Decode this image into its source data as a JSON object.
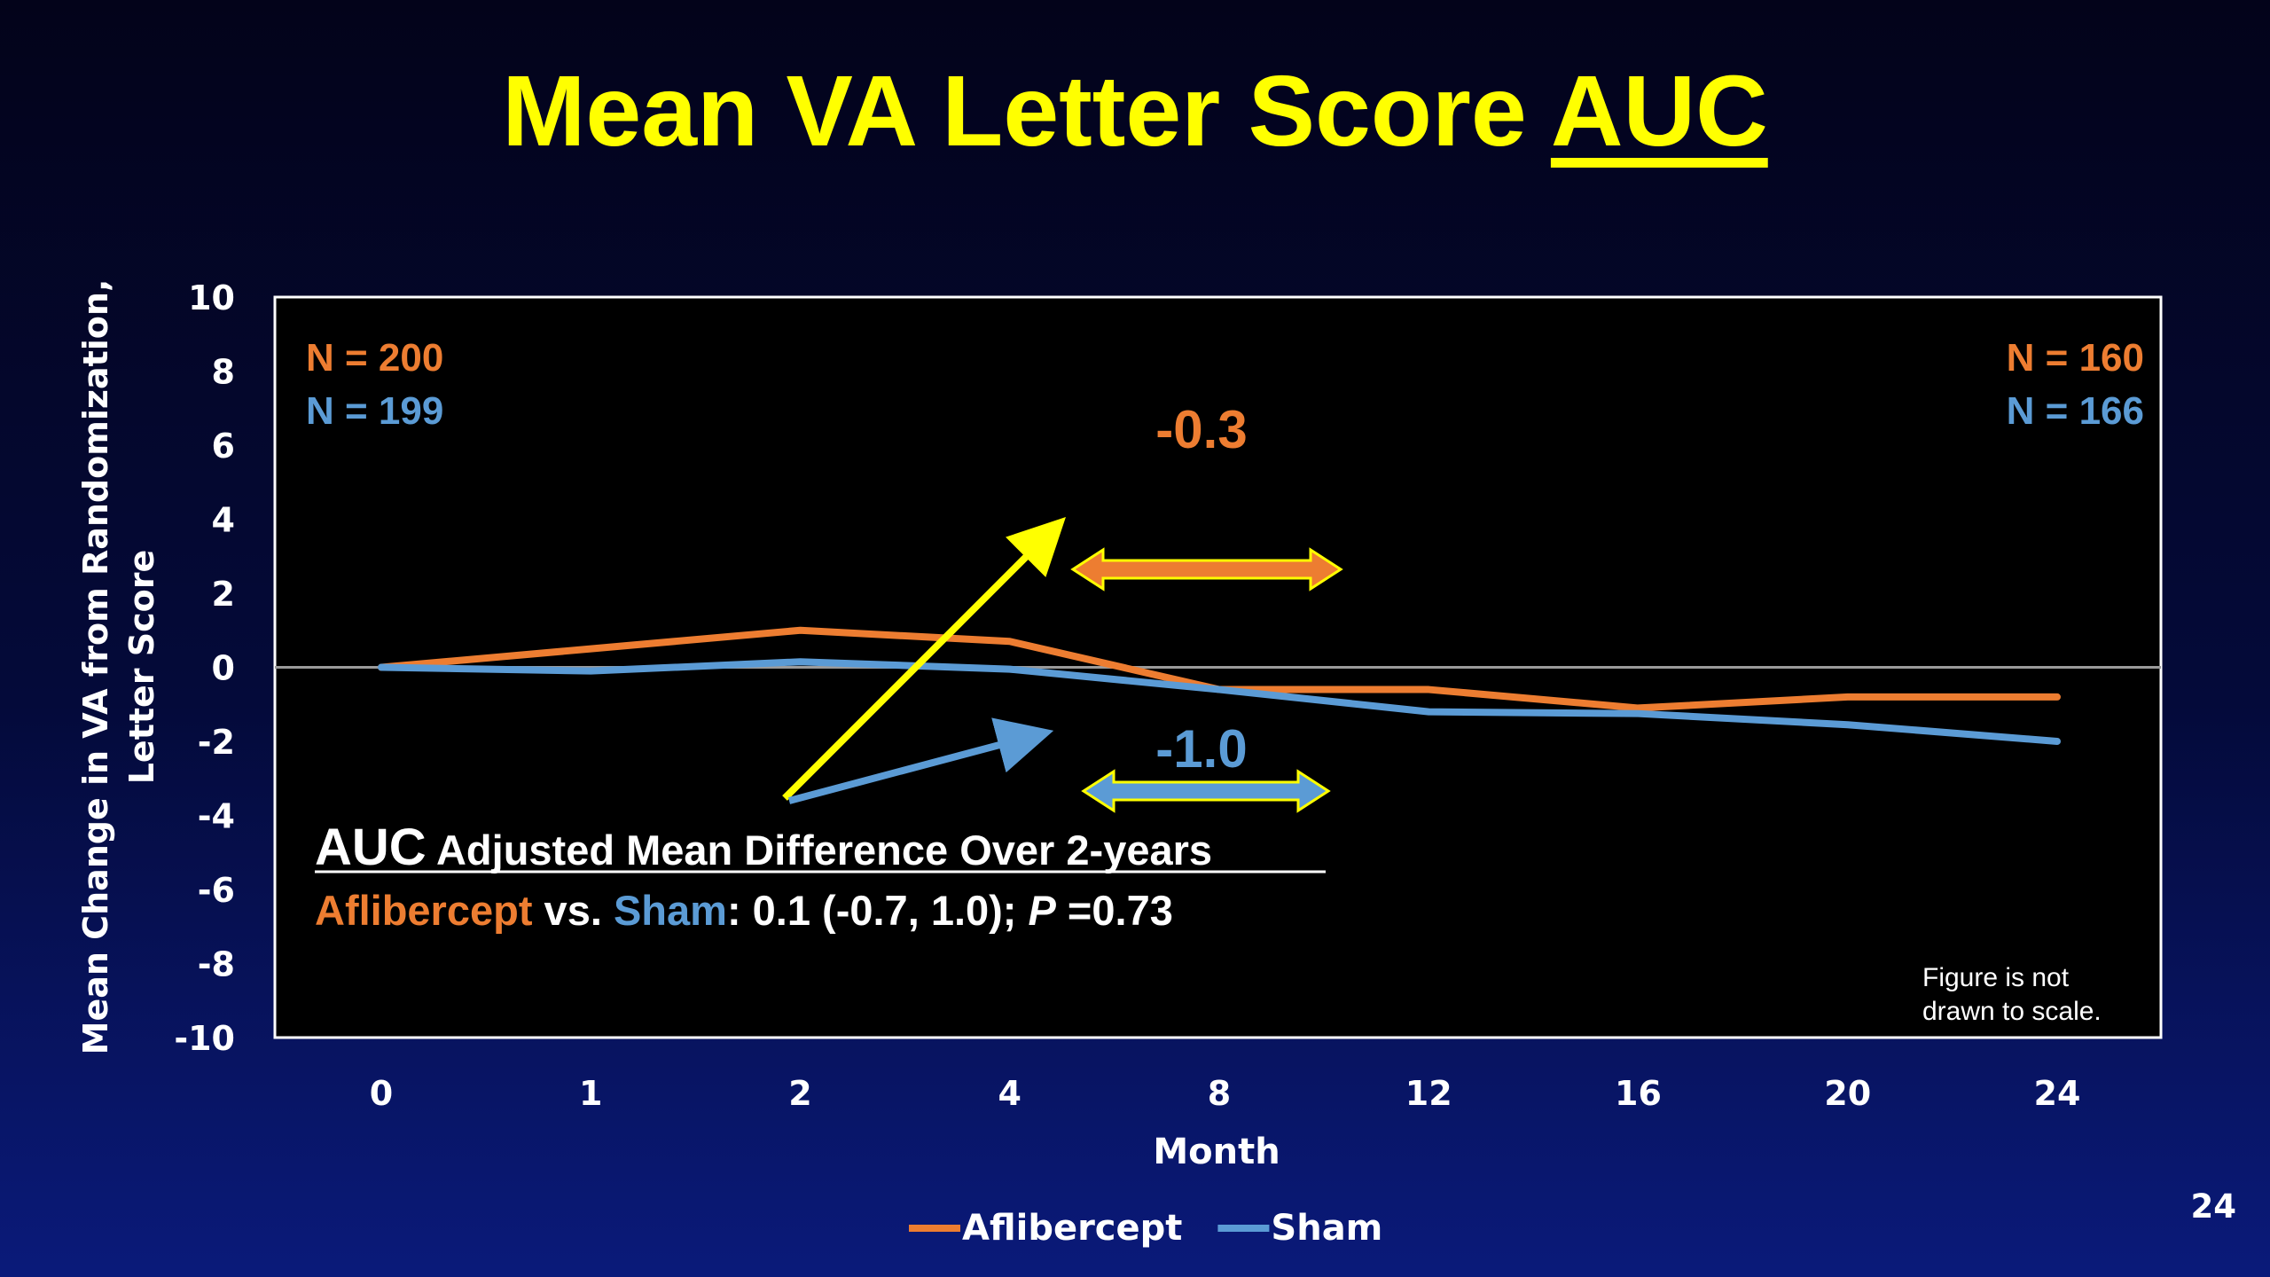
{
  "slide": {
    "title_main": "Mean VA Letter Score ",
    "title_underlined": "AUC",
    "page_number": "24"
  },
  "colors": {
    "aflibercept": "#ed7d31",
    "sham": "#5b9bd5",
    "title": "#ffff00",
    "arrow_yellow": "#ffff00"
  },
  "annotations": {
    "n_start_aflibercept": "N = 200",
    "n_start_sham": "N = 199",
    "n_end_aflibercept": "N = 160",
    "n_end_sham": "N = 166",
    "diff_aflibercept": "-0.3",
    "diff_sham": "-1.0",
    "auc_word": "AUC",
    "auc_heading": " Adjusted Mean Difference Over 2-years",
    "comparison_aflibercept": "Aflibercept",
    "comparison_vs": " vs. ",
    "comparison_sham": "Sham",
    "comparison_stats_1": ": 0.1 (-0.7, 1.0); ",
    "comparison_p": "P",
    "comparison_stats_2": " =0.73",
    "scale_note_line1": "Figure is not",
    "scale_note_line2": "drawn to scale."
  },
  "chart_data": {
    "type": "line",
    "title": "Mean VA Letter Score AUC",
    "xlabel": "Month",
    "ylabel_line1": "Mean Change in VA from Randomization,",
    "ylabel_line2": "Letter Score",
    "categories": [
      "0",
      "1",
      "2",
      "4",
      "8",
      "12",
      "16",
      "20",
      "24"
    ],
    "ylim": [
      -10,
      10
    ],
    "yticks": [
      10,
      8,
      6,
      4,
      2,
      0,
      -2,
      -4,
      -6,
      -8,
      -10
    ],
    "series": [
      {
        "name": "Aflibercept",
        "values": [
          0,
          0.5,
          1.0,
          0.7,
          -0.6,
          -0.6,
          -1.1,
          -0.8,
          -0.8
        ]
      },
      {
        "name": "Sham",
        "values": [
          0,
          -0.1,
          0.15,
          -0.05,
          -0.6,
          -1.2,
          -1.25,
          -1.55,
          -2.0
        ]
      }
    ],
    "legend_position": "bottom-center",
    "grid": false,
    "zero_line": true
  }
}
